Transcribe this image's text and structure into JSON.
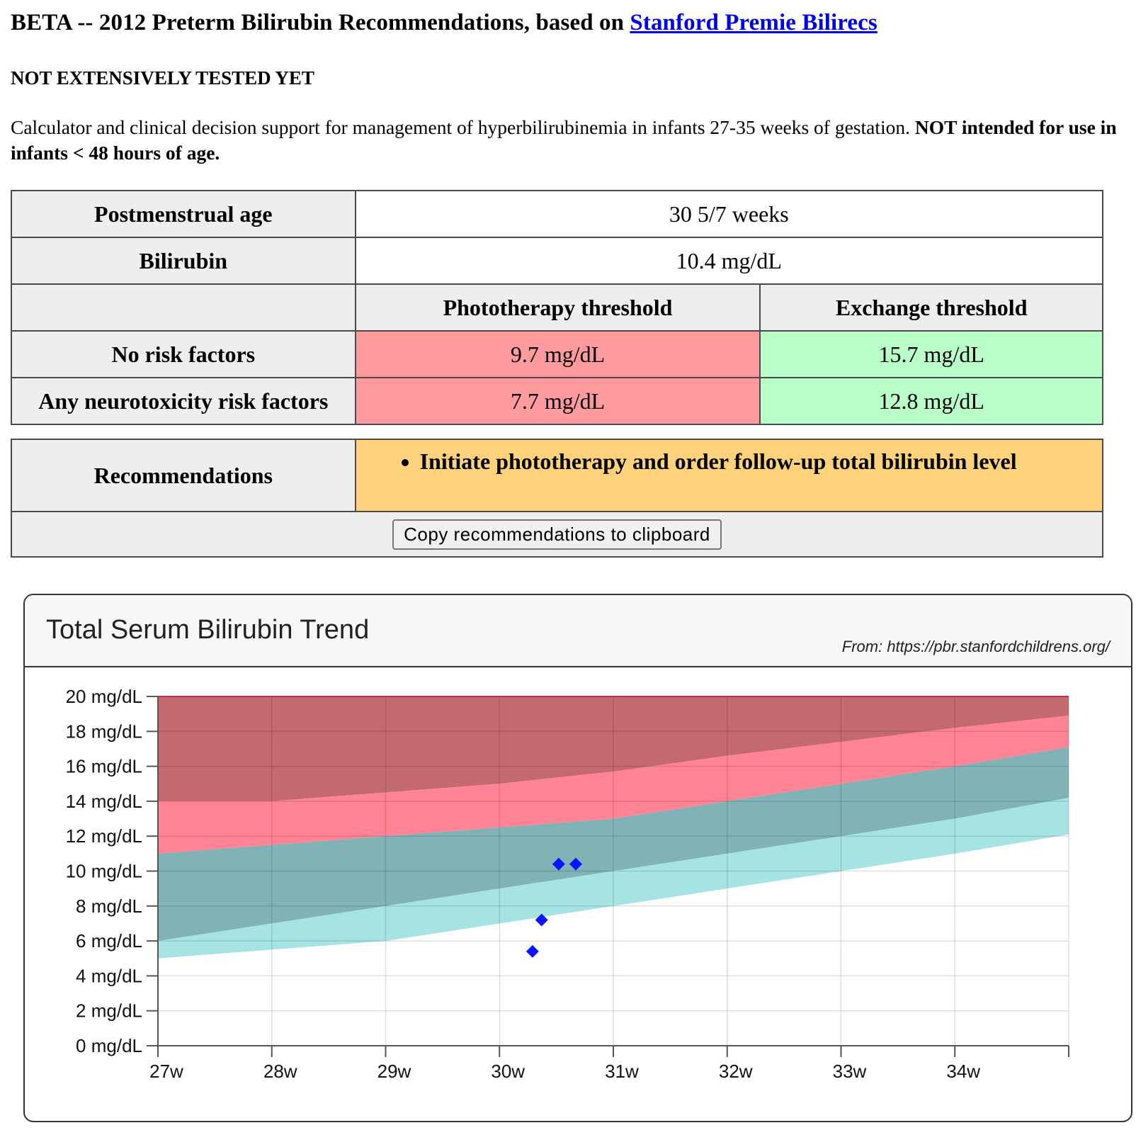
{
  "header": {
    "title_prefix": "BETA -- 2012 Preterm Bilirubin Recommendations, based on ",
    "title_link": "Stanford Premie Bilirecs",
    "warning": "NOT EXTENSIVELY TESTED YET",
    "intro_text": "Calculator and clinical decision support for management of hyperbilirubinemia in infants 27-35 weeks of gestation. ",
    "intro_bold": "NOT intended for use in infants < 48 hours of age."
  },
  "calculator": {
    "pma_label": "Postmenstrual age",
    "pma_value": "30 5/7 weeks",
    "bili_label": "Bilirubin",
    "bili_value": "10.4 mg/dL",
    "photo_header": "Phototherapy threshold",
    "exchange_header": "Exchange threshold",
    "rows": [
      {
        "label": "No risk factors",
        "photo": "9.7 mg/dL",
        "exchange": "15.7 mg/dL"
      },
      {
        "label": "Any neurotoxicity risk factors",
        "photo": "7.7 mg/dL",
        "exchange": "12.8 mg/dL"
      }
    ],
    "recommendations_label": "Recommendations",
    "recommendations": [
      "Initiate phototherapy and order follow-up total bilirubin level"
    ],
    "copy_button": "Copy recommendations to clipboard"
  },
  "chart": {
    "title": "Total Serum Bilirubin Trend",
    "source": "From: https://pbr.stanfordchildrens.org/"
  },
  "colors": {
    "dark_red_band": "#c46a6e",
    "pink_band": "#ff8394",
    "dark_teal_band": "#80b2b6",
    "light_teal_band": "#a6e3e3",
    "points": "#0a14ff"
  },
  "chart_data": {
    "type": "area",
    "title": "Total Serum Bilirubin Trend",
    "xlabel": "",
    "ylabel": "",
    "x_tick_labels": [
      "27w",
      "28w",
      "29w",
      "30w",
      "31w",
      "32w",
      "33w",
      "34w"
    ],
    "y_tick_labels": [
      "0 mg/dL",
      "2 mg/dL",
      "4 mg/dL",
      "6 mg/dL",
      "8 mg/dL",
      "10 mg/dL",
      "12 mg/dL",
      "14 mg/dL",
      "16 mg/dL",
      "18 mg/dL",
      "20 mg/dL"
    ],
    "xlim": [
      27,
      35
    ],
    "ylim": [
      0,
      20
    ],
    "grid": true,
    "bands": [
      {
        "x": [
          27,
          28,
          29,
          30,
          31,
          32,
          33,
          34,
          35
        ],
        "lower": [
          14,
          14,
          14.5,
          15,
          15.7,
          16.6,
          17.4,
          18.2,
          18.9
        ],
        "upper": [
          20,
          20,
          20,
          20,
          20,
          20,
          20,
          20,
          20
        ]
      },
      {
        "x": [
          27,
          28,
          29,
          30,
          31,
          32,
          33,
          34,
          35
        ],
        "lower": [
          11,
          11.5,
          12,
          12.5,
          13,
          14,
          15,
          16,
          17.1
        ],
        "upper": [
          14,
          14,
          14.5,
          15,
          15.7,
          16.6,
          17.4,
          18.2,
          18.9
        ]
      },
      {
        "x": [
          27,
          28,
          29,
          30,
          31,
          32,
          33,
          34,
          35
        ],
        "lower": [
          6,
          7,
          8,
          9,
          10,
          11,
          12,
          13,
          14.2
        ],
        "upper": [
          11,
          11.5,
          12,
          12.5,
          13,
          14,
          15,
          16,
          17.1
        ]
      },
      {
        "x": [
          27,
          28,
          29,
          30,
          31,
          32,
          33,
          34,
          35
        ],
        "lower": [
          5,
          5.5,
          6,
          7,
          8,
          9,
          10,
          11,
          12.1
        ],
        "upper": [
          6,
          7,
          8,
          9,
          10,
          11,
          12,
          13,
          14.2
        ]
      }
    ],
    "series": [
      {
        "x": [
          30.29,
          30.37,
          30.52,
          30.67
        ],
        "y": [
          5.4,
          7.2,
          10.4,
          10.4
        ]
      }
    ]
  }
}
